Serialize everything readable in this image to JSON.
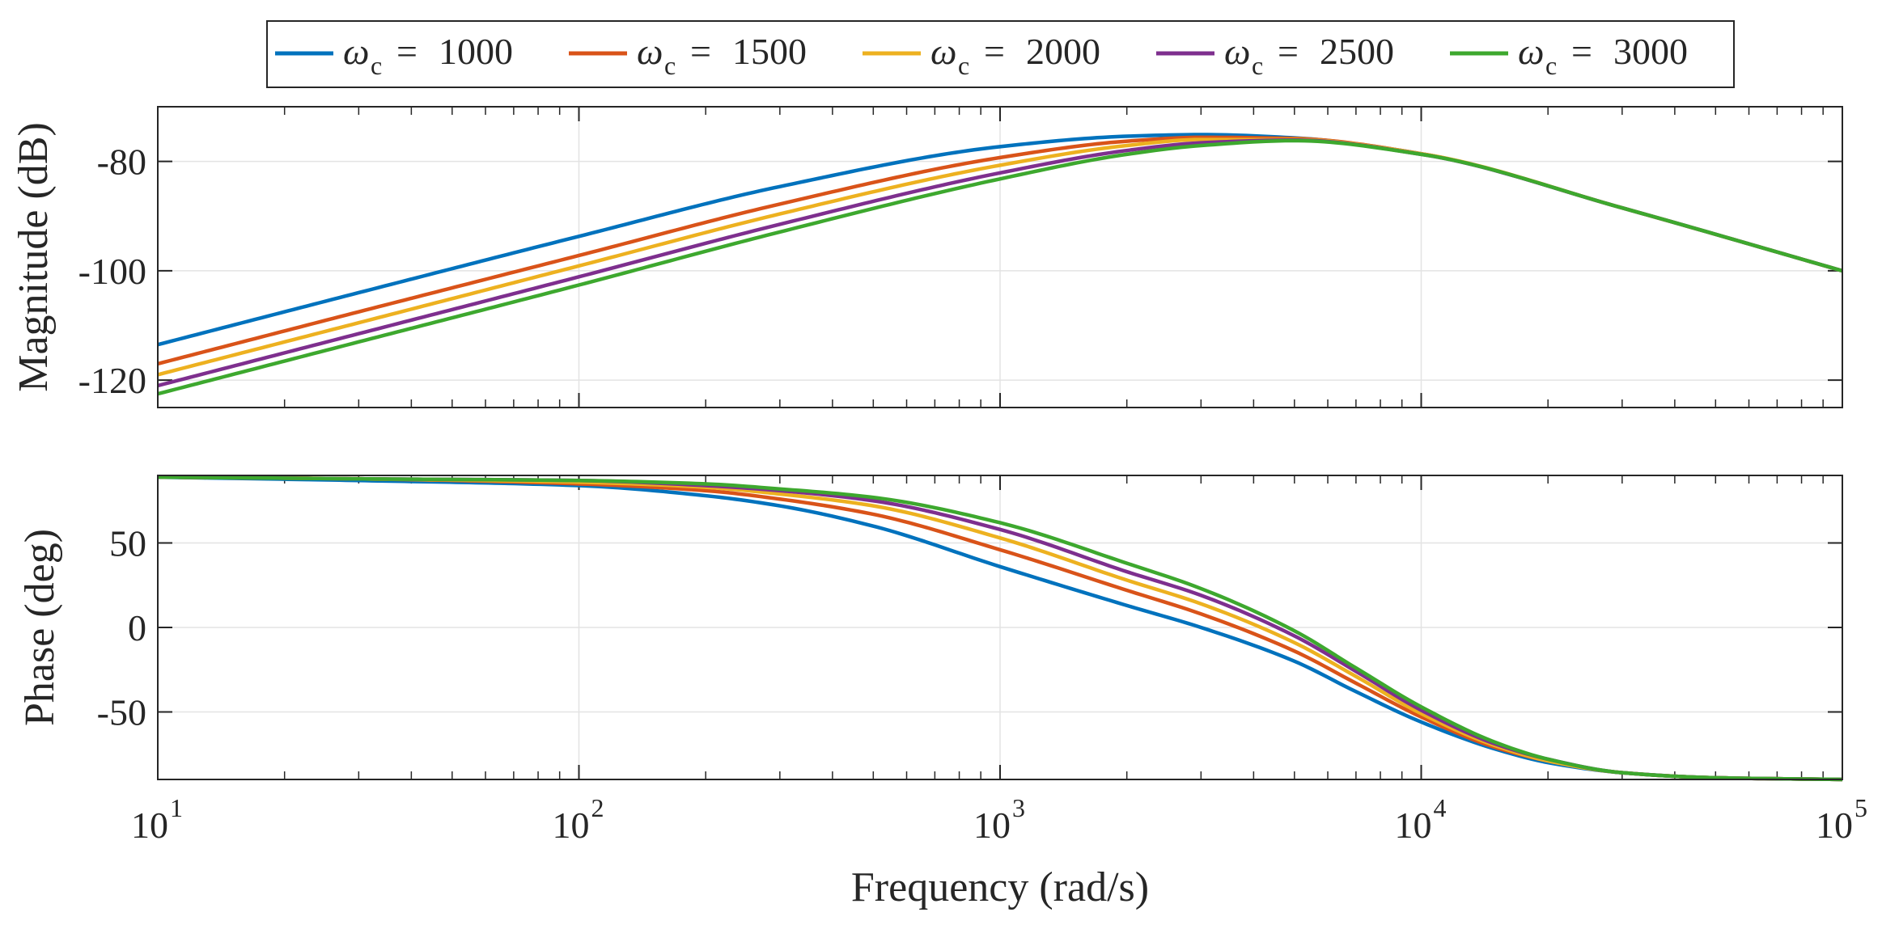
{
  "chart_data": {
    "type": "line",
    "subtype": "bode",
    "x_scale": "log",
    "xlim": [
      10,
      100000
    ],
    "xlabel": "Frequency (rad/s)",
    "x_ticks": [
      {
        "value": 10,
        "base": "10",
        "exp": "1"
      },
      {
        "value": 100,
        "base": "10",
        "exp": "2"
      },
      {
        "value": 1000,
        "base": "10",
        "exp": "3"
      },
      {
        "value": 10000,
        "base": "10",
        "exp": "4"
      },
      {
        "value": 100000,
        "base": "10",
        "exp": "5"
      }
    ],
    "grid": true,
    "legend": {
      "placement": "top-center",
      "symbol": "ω",
      "subscript": "c",
      "equals": "=",
      "entries": [
        "1000",
        "1500",
        "2000",
        "2500",
        "3000"
      ]
    },
    "series_colors": [
      "#0072BD",
      "#D95319",
      "#EDB120",
      "#7E2F8E",
      "#3DA82E"
    ],
    "series_names": [
      "ωc = 1000",
      "ωc = 1500",
      "ωc = 2000",
      "ωc = 2500",
      "ωc = 3000"
    ],
    "subplots": [
      {
        "name": "magnitude",
        "ylabel": "Magnitude (dB)",
        "ylim": [
          -125,
          -70
        ],
        "y_ticks": [
          -80,
          -100,
          -120
        ],
        "y_tick_labels": [
          "-80",
          "-100",
          "-120"
        ],
        "x": [
          10,
          30,
          100,
          300,
          1000,
          2000,
          3000,
          5000,
          10000,
          30000,
          100000
        ],
        "series": [
          {
            "name": "ωc = 1000",
            "values": [
              -113.5,
              -104.0,
              -93.7,
              -84.6,
              -77.3,
              -75.4,
              -75.1,
              -75.7,
              -78.6,
              -88.5,
              -100.0
            ]
          },
          {
            "name": "ωc = 1500",
            "values": [
              -117.0,
              -107.5,
              -97.2,
              -87.8,
              -79.3,
              -76.3,
              -75.6,
              -75.8,
              -78.6,
              -88.5,
              -100.0
            ]
          },
          {
            "name": "ωc = 2000",
            "values": [
              -119.0,
              -109.5,
              -99.1,
              -89.6,
              -80.7,
              -77.1,
              -76.0,
              -76.0,
              -78.6,
              -88.5,
              -100.0
            ]
          },
          {
            "name": "ωc = 2500",
            "values": [
              -121.0,
              -111.5,
              -101.1,
              -91.5,
              -82.1,
              -78.0,
              -76.6,
              -76.1,
              -78.7,
              -88.5,
              -100.0
            ]
          },
          {
            "name": "ωc = 3000",
            "values": [
              -122.5,
              -113.0,
              -102.6,
              -92.9,
              -83.2,
              -78.7,
              -77.1,
              -76.2,
              -78.7,
              -88.5,
              -100.0
            ]
          }
        ]
      },
      {
        "name": "phase",
        "ylabel": "Phase (deg)",
        "ylim": [
          -90,
          90
        ],
        "y_ticks": [
          50,
          0,
          -50
        ],
        "y_tick_labels": [
          "50",
          "0",
          "-50"
        ],
        "x": [
          10,
          30,
          100,
          200,
          300,
          500,
          1000,
          2000,
          3000,
          5000,
          7000,
          10000,
          15000,
          20000,
          30000,
          50000,
          100000
        ],
        "series": [
          {
            "name": "ωc = 1000",
            "values": [
              89,
              87,
              84,
              78,
              72,
              60,
              36,
              13,
              0,
              -20,
              -38,
              -56,
              -72,
              -80,
              -86,
              -89,
              -90
            ]
          },
          {
            "name": "ωc = 1500",
            "values": [
              89,
              88,
              85,
              81,
              76,
              67,
              46,
              22,
              8,
              -14,
              -33,
              -53,
              -71,
              -79,
              -86,
              -89,
              -90
            ]
          },
          {
            "name": "ωc = 2000",
            "values": [
              89,
              88,
              86,
              83,
              79,
              72,
              53,
              28,
              14,
              -9,
              -29,
              -51,
              -70,
              -79,
              -86,
              -89,
              -90
            ]
          },
          {
            "name": "ωc = 2500",
            "values": [
              89,
              88,
              87,
              84,
              81,
              75,
              58,
              33,
              19,
              -5,
              -26,
              -49,
              -69,
              -78,
              -86,
              -89,
              -90
            ]
          },
          {
            "name": "ωc = 3000",
            "values": [
              89,
              88,
              87,
              85,
              82,
              77,
              62,
              38,
              23,
              -2,
              -24,
              -47,
              -68,
              -78,
              -86,
              -89,
              -90
            ]
          }
        ]
      }
    ]
  }
}
